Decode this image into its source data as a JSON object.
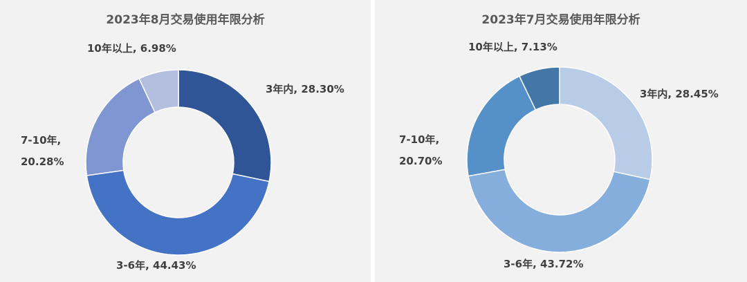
{
  "chart_data": [
    {
      "type": "pie",
      "title": "2023年8月交易使用年限分析",
      "categories": [
        "3年内",
        "3-6年",
        "7-10年",
        "10年以上"
      ],
      "values": [
        28.3,
        44.43,
        20.28,
        6.98
      ],
      "labels": [
        "3年内, 28.30%",
        "3-6年, 44.43%",
        "7-10年,",
        "20.28%",
        "10年以上, 6.98%"
      ],
      "colors": [
        "#2f5597",
        "#4472c4",
        "#7f96d2",
        "#b4bfe0"
      ]
    },
    {
      "type": "pie",
      "title": "2023年7月交易使用年限分析",
      "categories": [
        "3年内",
        "3-6年",
        "7-10年",
        "10年以上"
      ],
      "values": [
        28.45,
        43.72,
        20.7,
        7.13
      ],
      "labels": [
        "3年内, 28.45%",
        "3-6年, 43.72%",
        "7-10年,",
        "20.70%",
        "10年以上, 7.13%"
      ],
      "colors": [
        "#b8cce8",
        "#86aedd",
        "#5590c8",
        "#4277a8"
      ]
    }
  ]
}
